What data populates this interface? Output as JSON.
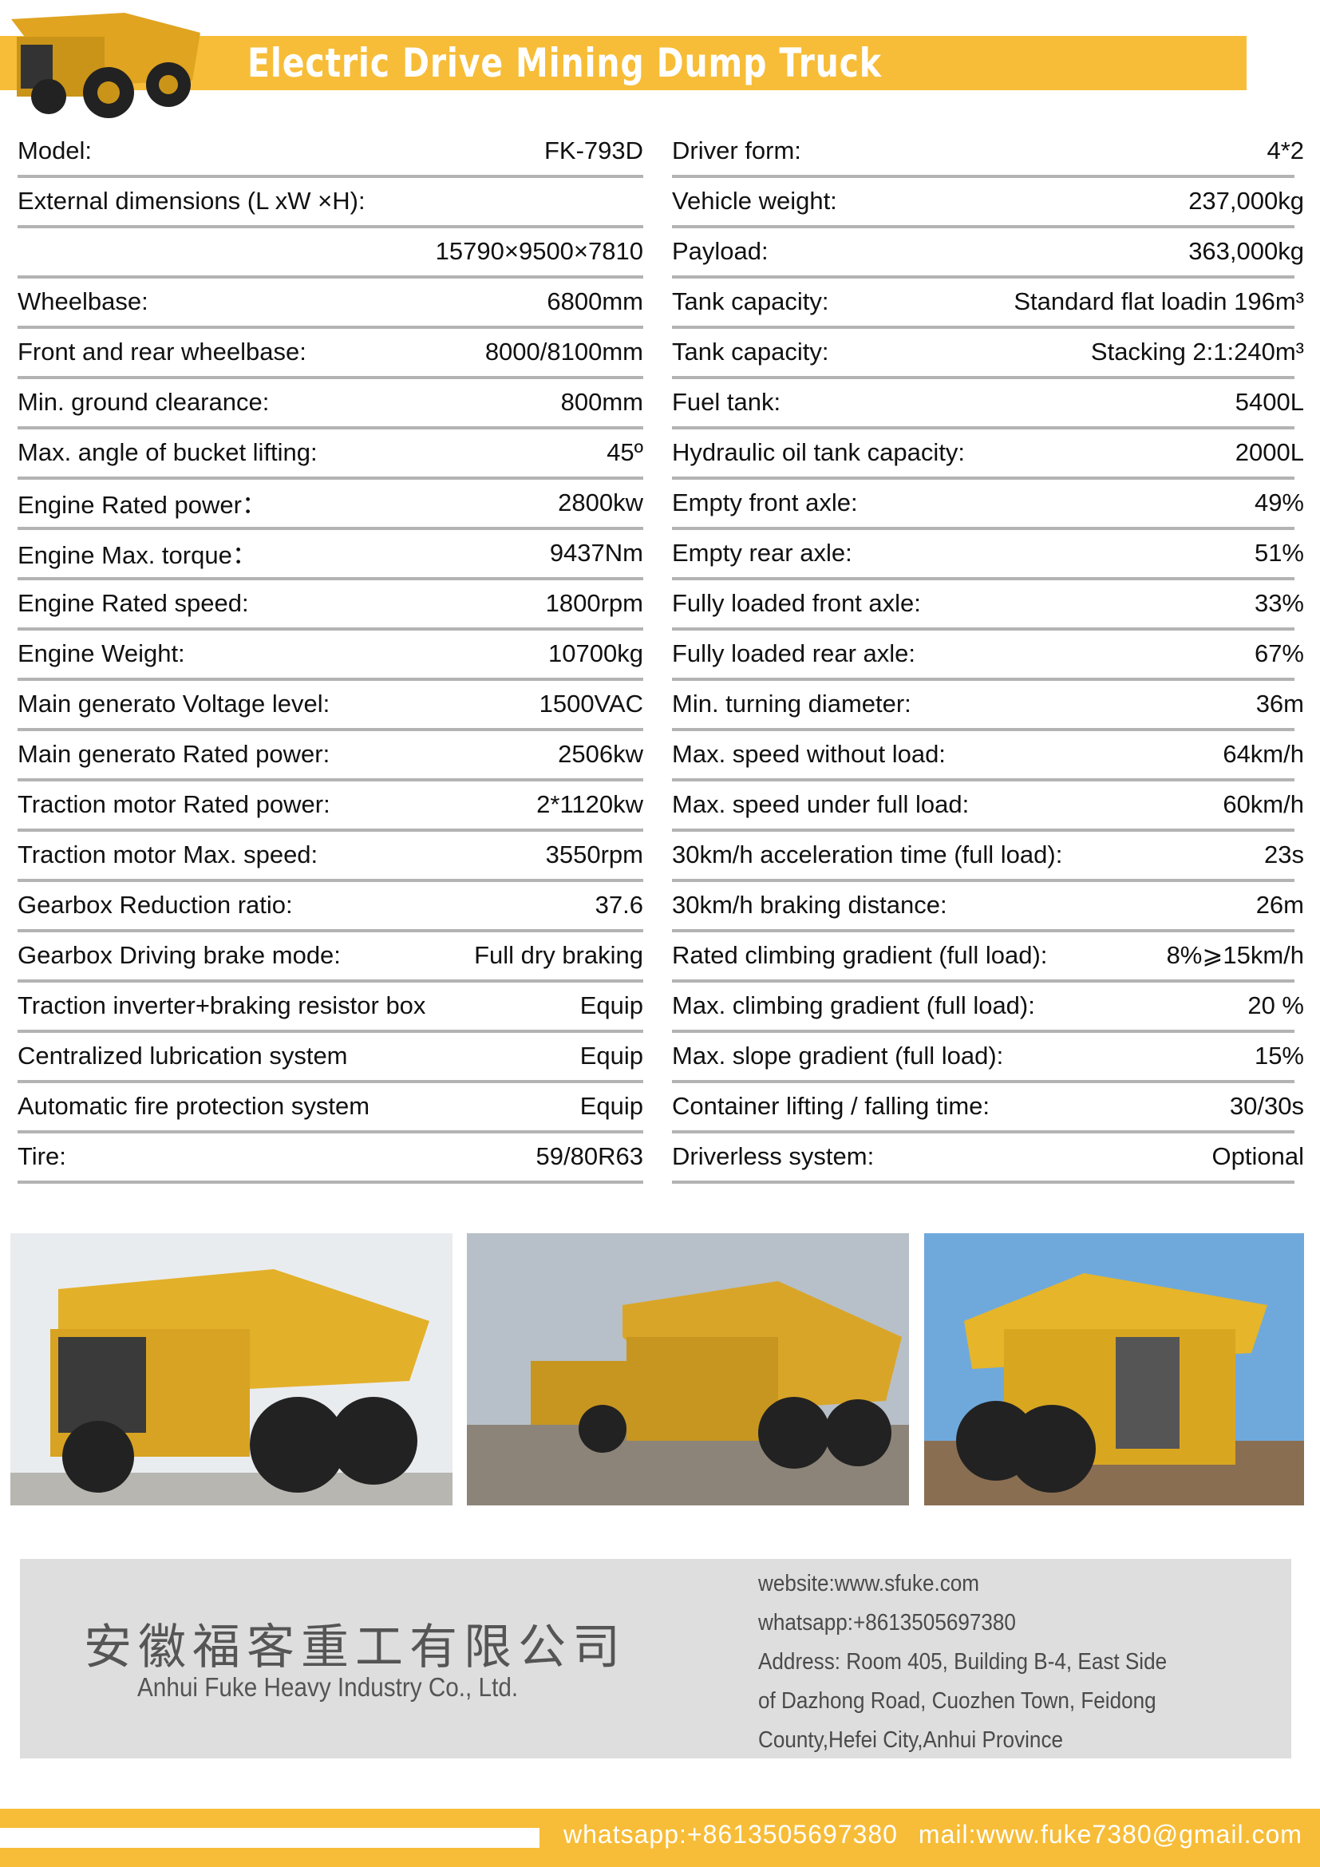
{
  "header": {
    "title": "Electric Drive Mining Dump Truck",
    "accent_color": "#f7bd38"
  },
  "specs_left": [
    {
      "label": "Model:",
      "value": "FK-793D"
    },
    {
      "label": "External dimensions (L xW ×H):",
      "value": ""
    },
    {
      "label": "",
      "value": "15790×9500×7810"
    },
    {
      "label": "Wheelbase:",
      "value": "6800mm"
    },
    {
      "label": "Front and rear wheelbase:",
      "value": "8000/8100mm"
    },
    {
      "label": "Min. ground clearance:",
      "value": "800mm"
    },
    {
      "label": "Max. angle of bucket lifting:",
      "value": "45º"
    },
    {
      "label": "Engine Rated power：",
      "value": "2800kw"
    },
    {
      "label": "Engine Max. torque：",
      "value": "9437Nm"
    },
    {
      "label": "Engine Rated speed:",
      "value": "1800rpm"
    },
    {
      "label": "Engine Weight:",
      "value": "10700kg"
    },
    {
      "label": "Main generato Voltage level:",
      "value": "1500VAC"
    },
    {
      "label": "Main generato Rated power:",
      "value": "2506kw"
    },
    {
      "label": "Traction motor Rated power:",
      "value": "2*1120kw"
    },
    {
      "label": "Traction motor Max. speed:",
      "value": "3550rpm"
    },
    {
      "label": "Gearbox Reduction ratio:",
      "value": "37.6"
    },
    {
      "label": "Gearbox Driving brake mode:",
      "value": "Full dry braking"
    },
    {
      "label": "Traction inverter+braking resistor box",
      "value": "Equip"
    },
    {
      "label": "Centralized lubrication system",
      "value": "Equip"
    },
    {
      "label": "Automatic fire protection system",
      "value": "Equip"
    },
    {
      "label": "Tire:",
      "value": "59/80R63"
    }
  ],
  "specs_right": [
    {
      "label": "Driver form:",
      "value": "4*2"
    },
    {
      "label": "Vehicle weight:",
      "value": "237,000kg"
    },
    {
      "label": "Payload:",
      "value": "363,000kg"
    },
    {
      "label": "Tank capacity:",
      "value": "Standard flat loadin  196m³"
    },
    {
      "label": "Tank capacity:",
      "value": "Stacking  2:1:240m³"
    },
    {
      "label": "Fuel tank:",
      "value": "5400L"
    },
    {
      "label": "Hydraulic oil tank capacity:",
      "value": "2000L"
    },
    {
      "label": "Empty front axle:",
      "value": "49%"
    },
    {
      "label": "Empty rear axle:",
      "value": "51%"
    },
    {
      "label": "Fully loaded front axle:",
      "value": "33%"
    },
    {
      "label": "Fully loaded rear axle:",
      "value": "67%"
    },
    {
      "label": "Min. turning diameter:",
      "value": "36m"
    },
    {
      "label": "Max. speed without load:",
      "value": "64km/h"
    },
    {
      "label": "Max. speed under full load:",
      "value": "60km/h"
    },
    {
      "label": "30km/h acceleration time (full load):",
      "value": "23s"
    },
    {
      "label": "30km/h braking distance:",
      "value": "26m"
    },
    {
      "label": "Rated climbing gradient (full load):",
      "value": "8%⩾15km/h"
    },
    {
      "label": "Max. climbing gradient (full load):",
      "value": "20 %"
    },
    {
      "label": "Max. slope gradient (full load):",
      "value": "15%"
    },
    {
      "label": "Container lifting / falling time:",
      "value": "30/30s"
    },
    {
      "label": "Driverless system:",
      "value": "Optional"
    }
  ],
  "company": {
    "name_cn": "安徽福客重工有限公司",
    "name_en": "Anhui Fuke Heavy Industry Co., Ltd.",
    "info": [
      "website:www.sfuke.com",
      "whatsapp:+8613505697380",
      "Address: Room 405, Building B-4, East Side",
      "of Dazhong Road, Cuozhen Town, Feidong",
      "County,Hefei City,Anhui Province"
    ]
  },
  "footer": {
    "whatsapp": "whatsapp:+8613505697380",
    "mail": "mail:www.fuke7380@gmail.com"
  }
}
